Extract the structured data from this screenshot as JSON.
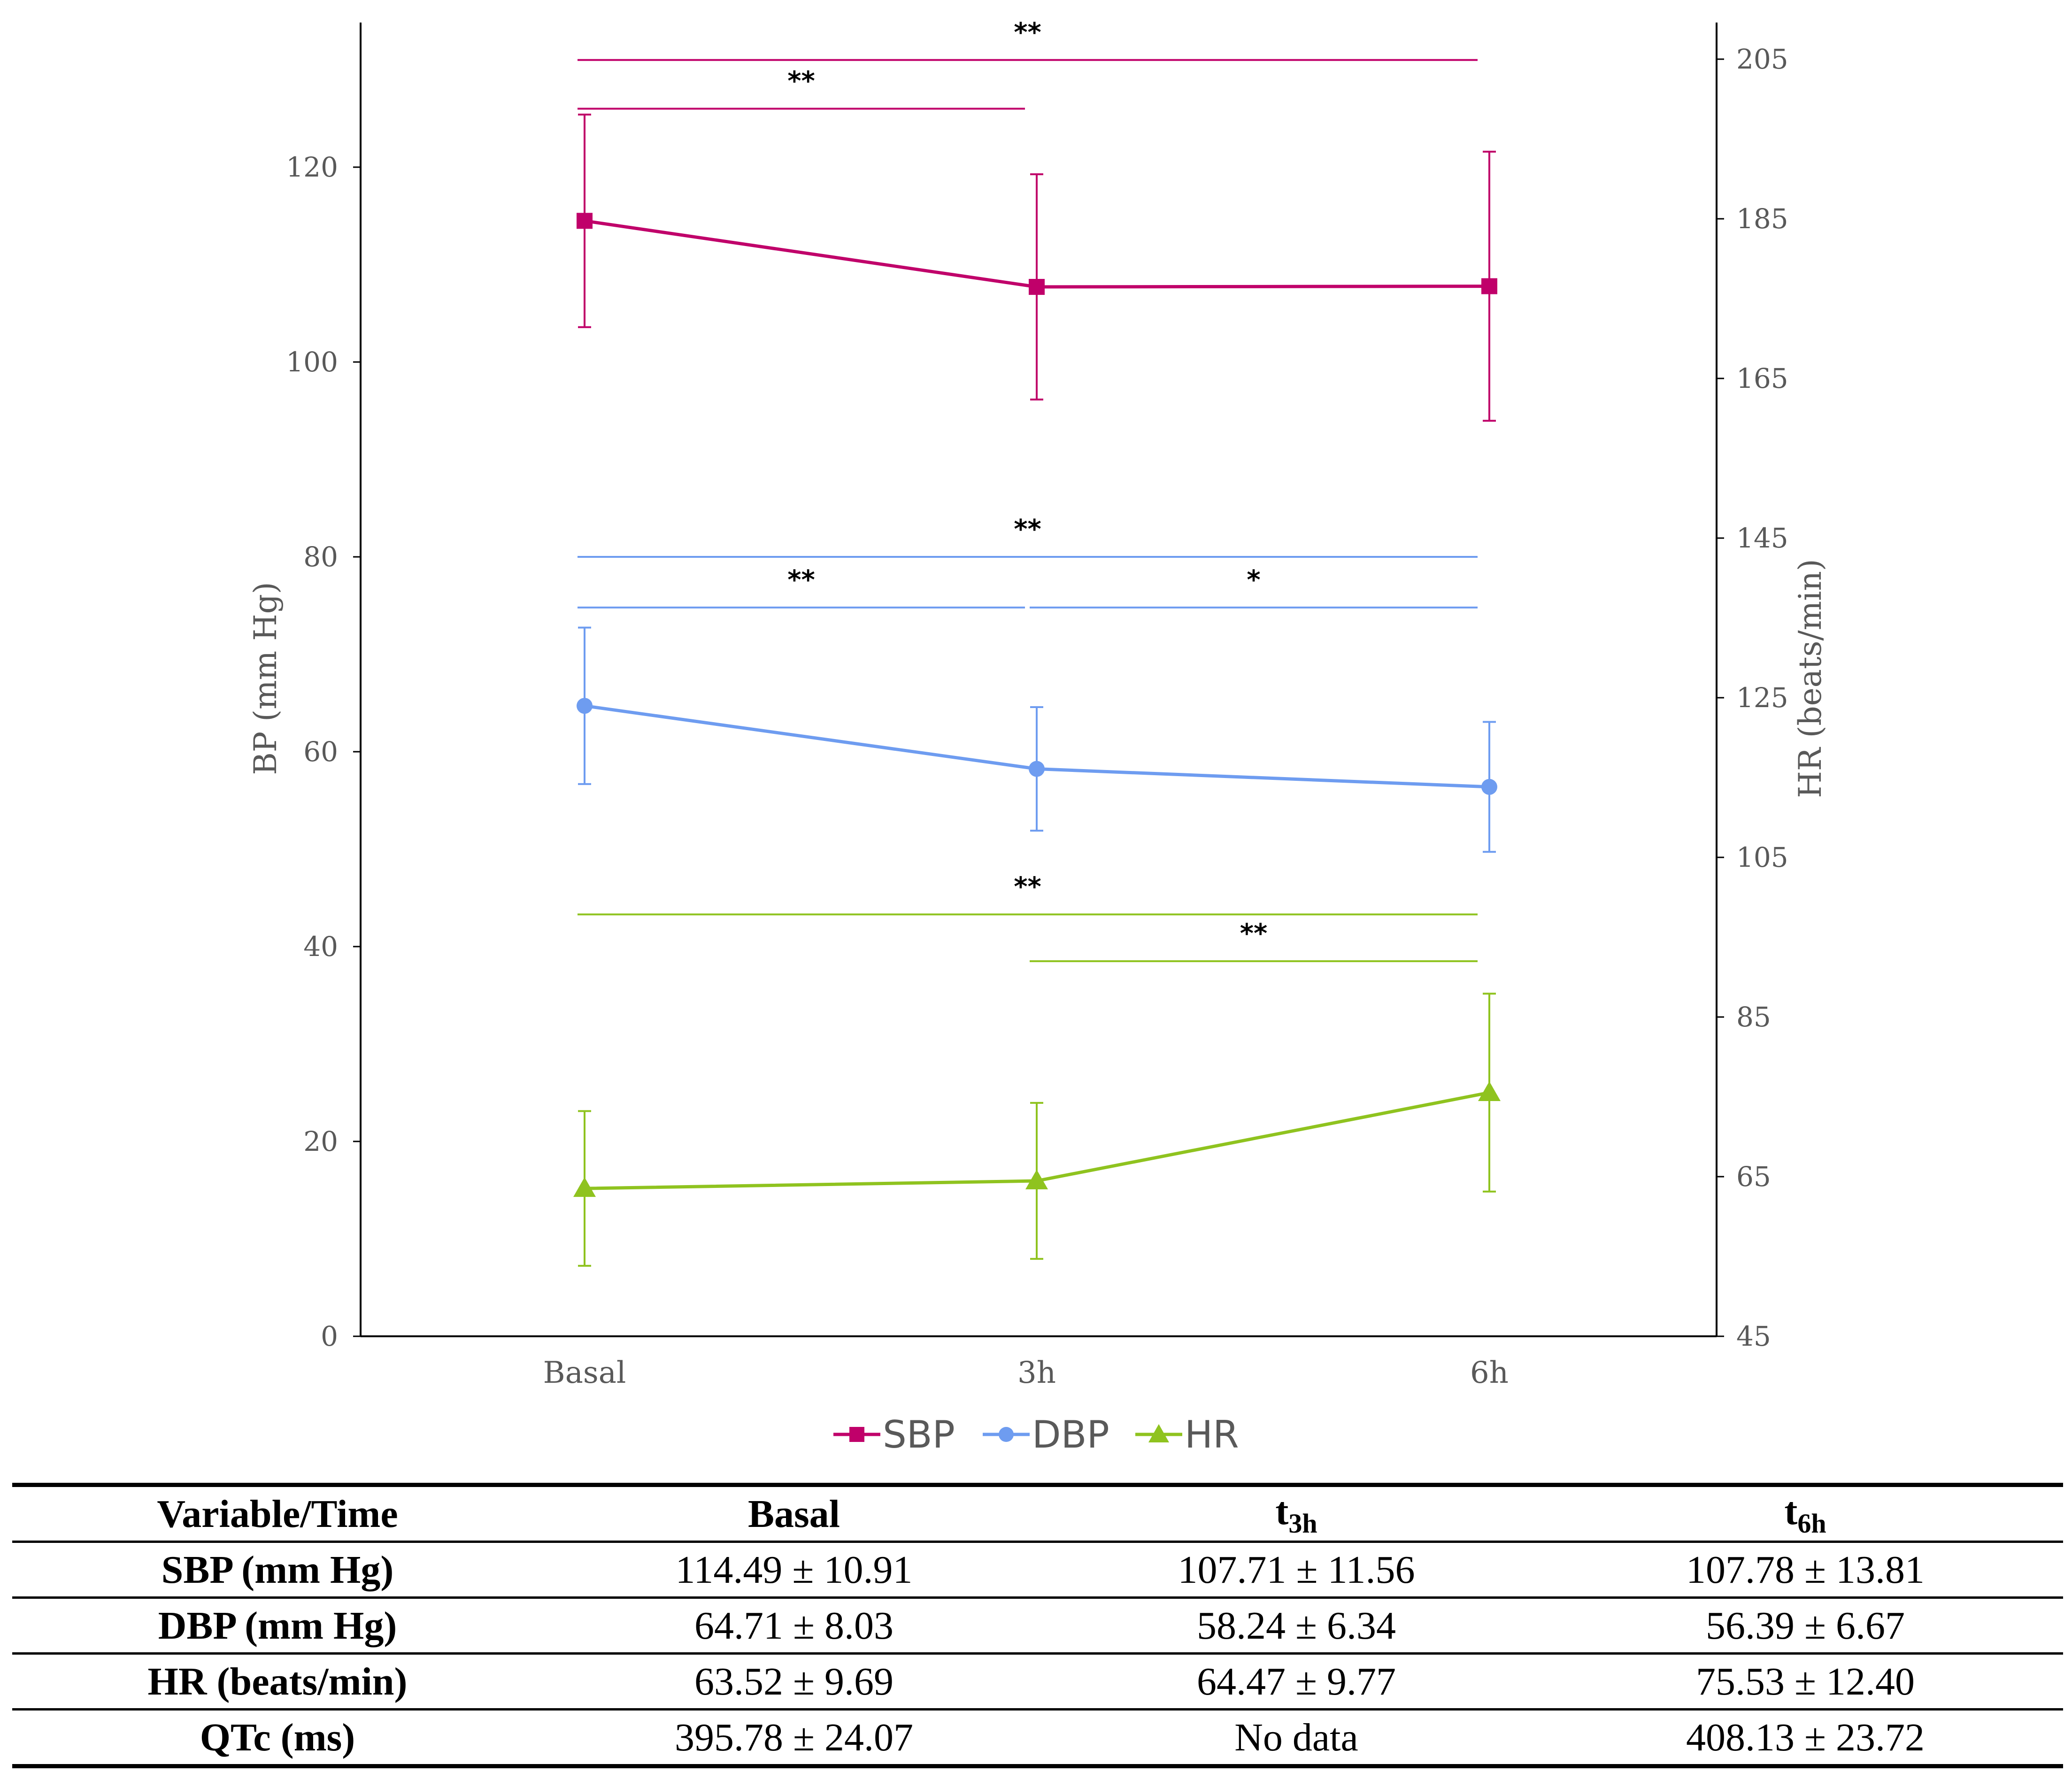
{
  "chart_data": {
    "type": "line",
    "categories": [
      "Basal",
      "3h",
      "6h"
    ],
    "left_axis": {
      "label": "BP (mm Hg)",
      "range": [
        0,
        135
      ],
      "ticks": [
        0,
        20,
        40,
        60,
        80,
        100,
        120
      ]
    },
    "right_axis": {
      "label": "HR (beats/min)",
      "range": [
        45,
        210
      ],
      "ticks": [
        45,
        65,
        85,
        105,
        125,
        145,
        165,
        185,
        205
      ]
    },
    "series": [
      {
        "name": "SBP",
        "axis": "left",
        "color": "#C0006A",
        "marker": "square",
        "values": [
          114.49,
          107.71,
          107.78
        ],
        "errors": [
          10.91,
          11.56,
          13.81
        ]
      },
      {
        "name": "DBP",
        "axis": "left",
        "color": "#6E9CF0",
        "marker": "circle",
        "values": [
          64.71,
          58.24,
          56.39
        ],
        "errors": [
          8.03,
          6.34,
          6.67
        ]
      },
      {
        "name": "HR",
        "axis": "right",
        "color": "#8FC31F",
        "marker": "triangle",
        "values": [
          63.52,
          64.47,
          75.53
        ],
        "errors": [
          9.69,
          9.77,
          12.4
        ]
      }
    ],
    "significance": [
      {
        "series": "SBP",
        "from": 0,
        "to": 2,
        "label": "**",
        "level": 131
      },
      {
        "series": "SBP",
        "from": 0,
        "to": 1,
        "label": "**",
        "level": 126
      },
      {
        "series": "DBP",
        "from": 0,
        "to": 2,
        "label": "**",
        "level": 80
      },
      {
        "series": "DBP",
        "from": 0,
        "to": 1,
        "label": "**",
        "level": 74.8
      },
      {
        "series": "DBP",
        "from": 1,
        "to": 2,
        "label": "*",
        "level": 74.8
      },
      {
        "series": "HR",
        "from": 0,
        "to": 2,
        "label": "**",
        "level": 43.3
      },
      {
        "series": "HR",
        "from": 1,
        "to": 2,
        "label": "**",
        "level": 38.5
      }
    ],
    "legend": {
      "position": "bottom",
      "entries": [
        "SBP",
        "DBP",
        "HR"
      ]
    }
  },
  "table": {
    "headers": [
      "Variable/Time",
      "Basal",
      "t",
      "t"
    ],
    "header_subs": [
      "",
      "",
      "3h",
      "6h"
    ],
    "rows": [
      {
        "label": "SBP (mm Hg)",
        "cells": [
          "114.49 ± 10.91",
          "107.71 ± 11.56",
          "107.78 ± 13.81"
        ]
      },
      {
        "label": "DBP (mm Hg)",
        "cells": [
          "64.71 ± 8.03",
          "58.24 ± 6.34",
          "56.39 ± 6.67"
        ]
      },
      {
        "label": "HR (beats/min)",
        "cells": [
          "63.52 ± 9.69",
          "64.47 ± 9.77",
          "75.53 ± 12.40"
        ]
      },
      {
        "label": "QTc (ms)",
        "cells": [
          "395.78 ± 24.07",
          "No data",
          "408.13 ± 23.72"
        ]
      }
    ]
  }
}
